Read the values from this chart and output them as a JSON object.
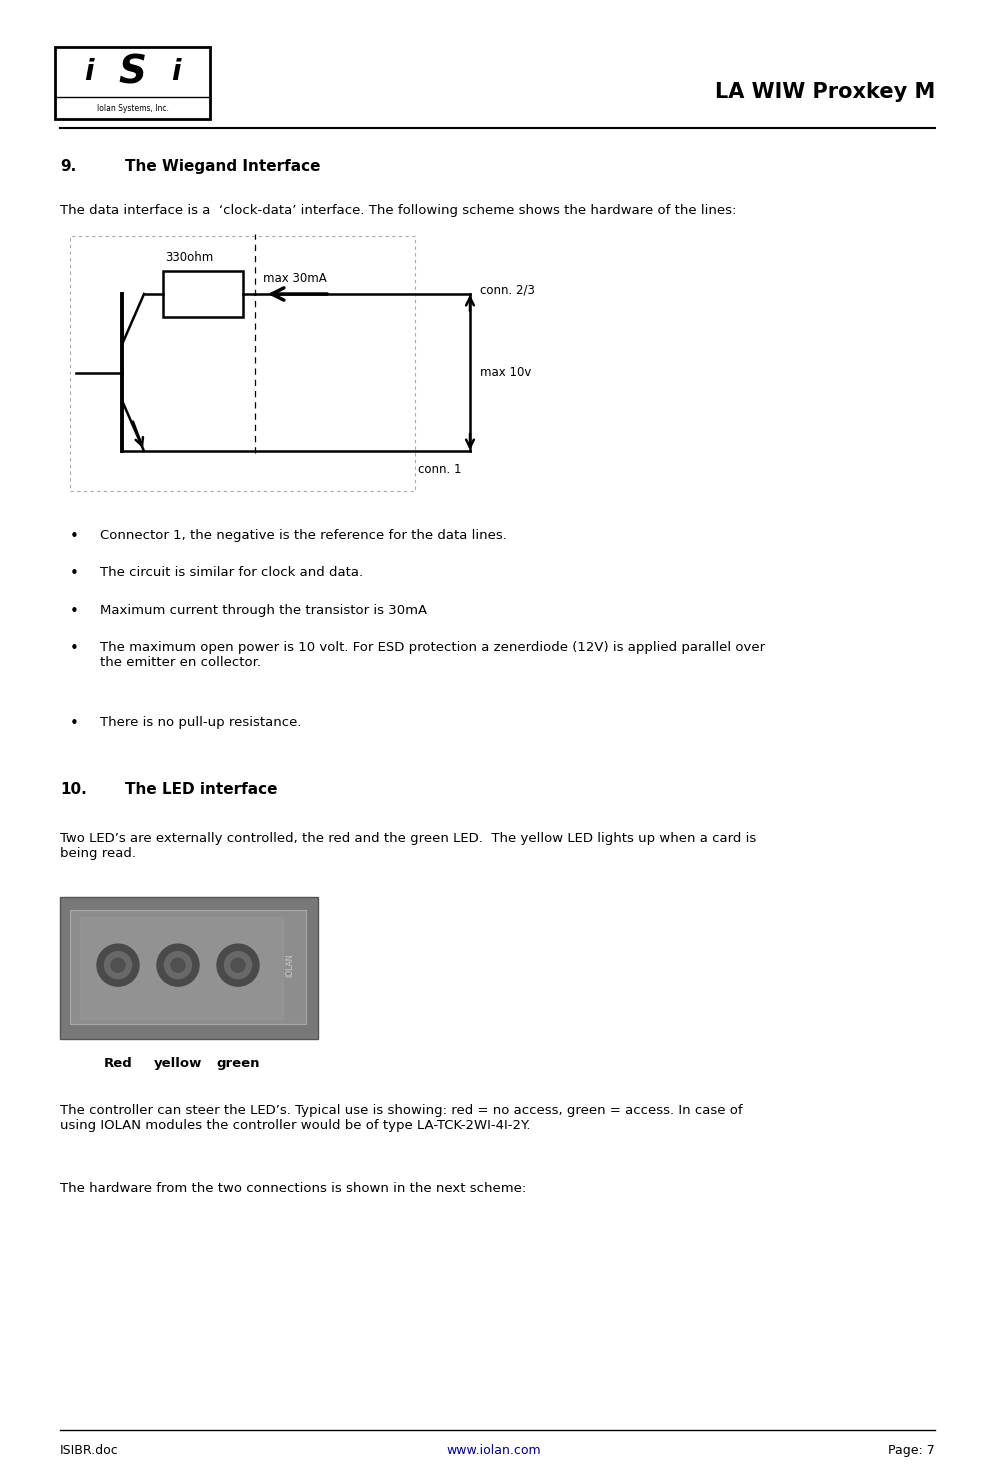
{
  "page_width": 9.87,
  "page_height": 14.74,
  "bg_color": "#ffffff",
  "header_title": "LA WIW Proxkey M",
  "footer_left": "ISIBR.doc",
  "footer_center": "www.iolan.com",
  "footer_right": "Page: 7",
  "section9_num": "9.",
  "section9_title": "The Wiegand Interface",
  "section9_body": "The data interface is a  ‘clock-data’ interface. The following scheme shows the hardware of the lines:",
  "bullet_points": [
    "Connector 1, the negative is the reference for the data lines.",
    "The circuit is similar for clock and data.",
    "Maximum current through the transistor is 30mA",
    "The maximum open power is 10 volt. For ESD protection a zenerdiode (12V) is applied parallel over\nthe emitter en collector.",
    "There is no pull-up resistance."
  ],
  "section10_num": "10.",
  "section10_title": "The LED interface",
  "section10_body1": "Two LED’s are externally controlled, the red and the green LED.  The yellow LED lights up when a card is\nbeing read.",
  "led_labels": [
    "Red",
    "yellow",
    "green"
  ],
  "section10_body2": "The controller can steer the LED’s. Typical use is showing: red = no access, green = access. In case of\nusing IOLAN modules the controller would be of type LA-TCK-2WI-4I-2Y.",
  "section10_body3": "The hardware from the two connections is shown in the next scheme:",
  "circuit_label_330ohm": "330ohm",
  "circuit_label_max30mA": "max 30mA",
  "circuit_label_conn23": "conn. 2/3",
  "circuit_label_max10v": "max 10v",
  "circuit_label_conn1": "conn. 1",
  "logo_text_bottom": "Iolan Systems, Inc."
}
